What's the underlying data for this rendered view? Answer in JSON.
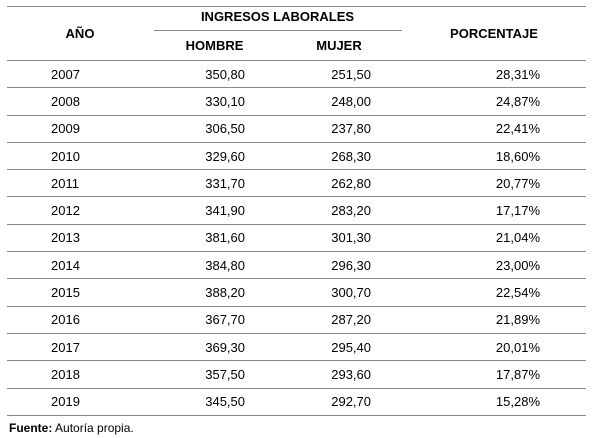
{
  "table": {
    "headers": {
      "year": "AÑO",
      "group": "INGRESOS LABORALES",
      "hombre": "HOMBRE",
      "mujer": "MUJER",
      "percentage": "PORCENTAJE"
    },
    "rows": [
      {
        "year": "2007",
        "hombre": "350,80",
        "mujer": "251,50",
        "percentage": "28,31%"
      },
      {
        "year": "2008",
        "hombre": "330,10",
        "mujer": "248,00",
        "percentage": "24,87%"
      },
      {
        "year": "2009",
        "hombre": "306,50",
        "mujer": "237,80",
        "percentage": "22,41%"
      },
      {
        "year": "2010",
        "hombre": "329,60",
        "mujer": "268,30",
        "percentage": "18,60%"
      },
      {
        "year": "2011",
        "hombre": "331,70",
        "mujer": "262,80",
        "percentage": "20,77%"
      },
      {
        "year": "2012",
        "hombre": "341,90",
        "mujer": "283,20",
        "percentage": "17,17%"
      },
      {
        "year": "2013",
        "hombre": "381,60",
        "mujer": "301,30",
        "percentage": "21,04%"
      },
      {
        "year": "2014",
        "hombre": "384,80",
        "mujer": "296,30",
        "percentage": "23,00%"
      },
      {
        "year": "2015",
        "hombre": "388,20",
        "mujer": "300,70",
        "percentage": "22,54%"
      },
      {
        "year": "2016",
        "hombre": "367,70",
        "mujer": "287,20",
        "percentage": "21,89%"
      },
      {
        "year": "2017",
        "hombre": "369,30",
        "mujer": "295,40",
        "percentage": "20,01%"
      },
      {
        "year": "2018",
        "hombre": "357,50",
        "mujer": "293,60",
        "percentage": "17,87%"
      },
      {
        "year": "2019",
        "hombre": "345,50",
        "mujer": "292,70",
        "percentage": "15,28%"
      }
    ]
  },
  "source": {
    "label": "Fuente:",
    "text": " Autoría propia."
  }
}
